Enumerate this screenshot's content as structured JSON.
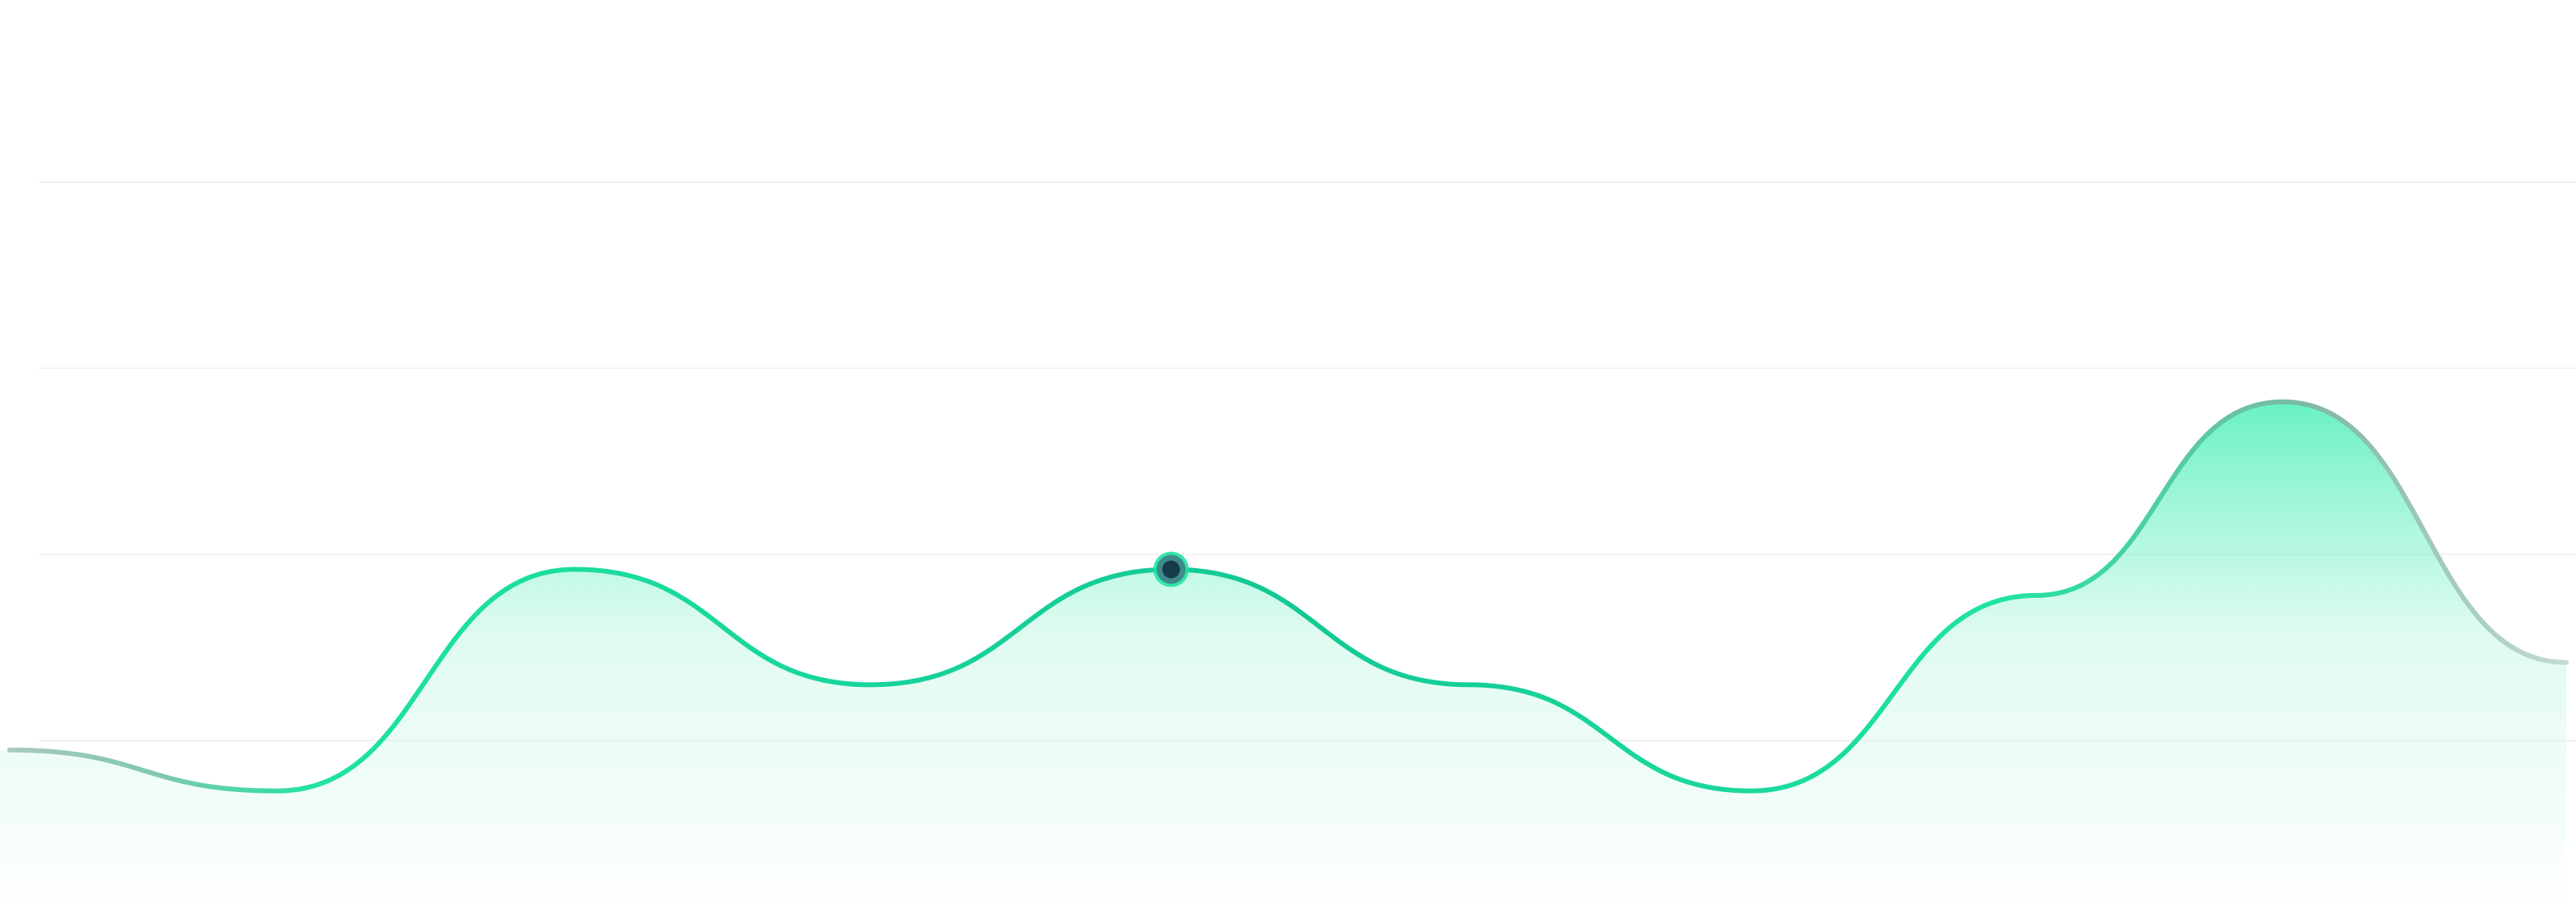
{
  "chart_data": {
    "type": "area",
    "title": "",
    "xlabel": "",
    "ylabel": "",
    "grid": true,
    "legend": "none",
    "x": [
      0,
      1,
      2,
      3,
      4,
      5,
      6,
      7,
      8,
      9
    ],
    "ylim": [
      0,
      5
    ],
    "gridlines": [
      1,
      2,
      3,
      4,
      5
    ],
    "series": [
      {
        "values": [
          0.95,
          0.73,
          1.92,
          1.3,
          1.92,
          1.3,
          0.73,
          1.78,
          2.82,
          1.42
        ]
      }
    ],
    "highlight": {
      "index": 4
    },
    "colors": {
      "line": "#1ee3a3",
      "line_mid": "#10bc8f",
      "line_edge": "#a8c8c0",
      "fill_top": "#4cefb8",
      "marker_fill": "#163a4a",
      "marker_ring": "#1ee3a3",
      "grid": "#f2f2f2"
    }
  }
}
